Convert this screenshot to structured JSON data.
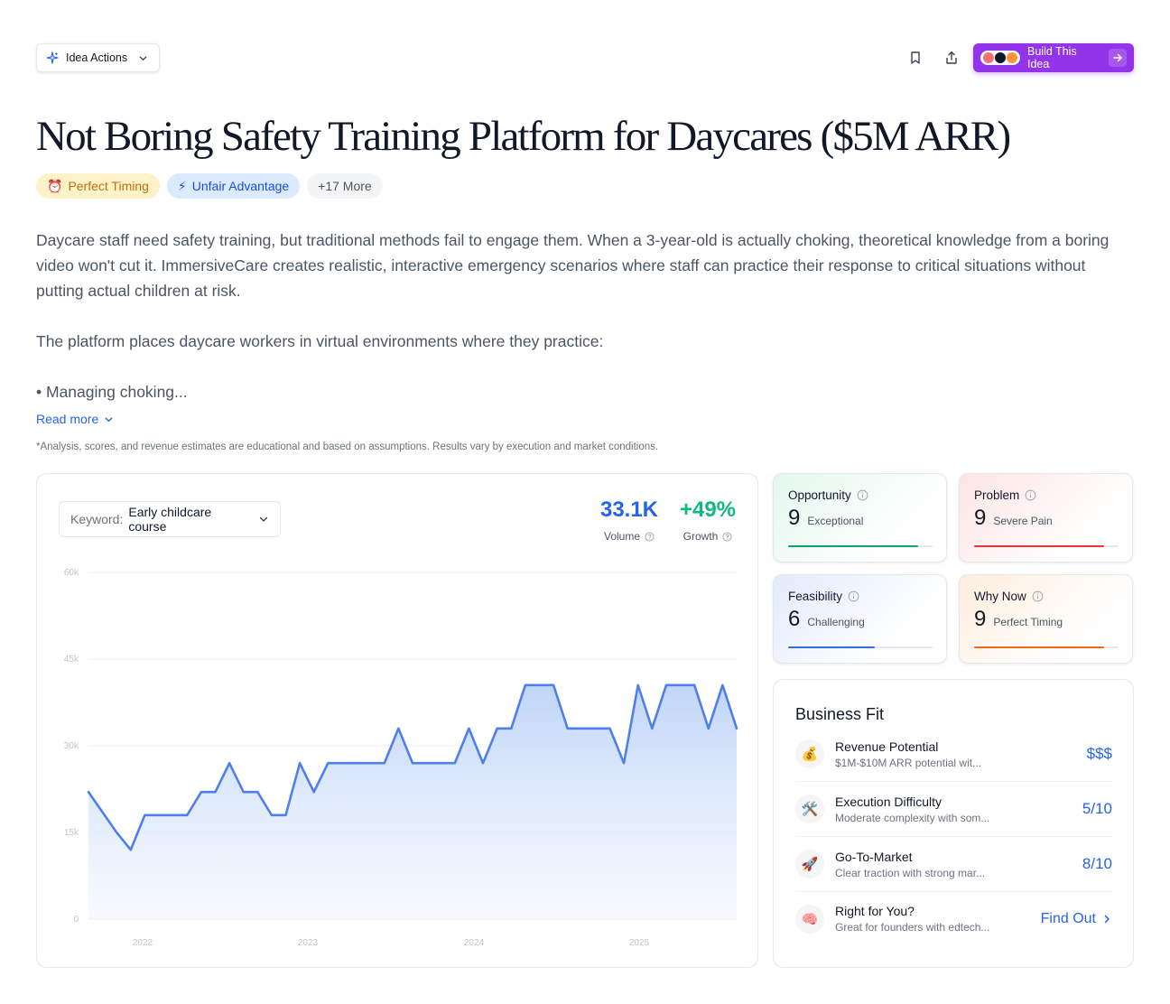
{
  "header": {
    "idea_actions_label": "Idea Actions",
    "build_label": "Build This Idea"
  },
  "title": "Not Boring Safety Training Platform for Daycares ($5M ARR)",
  "tags": [
    {
      "icon": "⏰",
      "label": "Perfect Timing"
    },
    {
      "icon": "⚡",
      "label": "Unfair Advantage"
    },
    {
      "label": "+17 More"
    }
  ],
  "description": {
    "p1": "Daycare staff need safety training, but traditional methods fail to engage them. When a 3-year-old is actually choking, theoretical knowledge from a boring video won't cut it. ImmersiveCare creates realistic, interactive emergency scenarios where staff can practice their response to critical situations without putting actual children at risk.",
    "p2": "The platform places daycare workers in virtual environments where they practice:",
    "p3": "• Managing choking...",
    "read_more": "Read more"
  },
  "disclaimer": "*Analysis, scores, and revenue estimates are educational and based on assumptions. Results vary by execution and market conditions.",
  "keyword": {
    "label": "Keyword:",
    "value": "Early childcare course"
  },
  "metrics": {
    "volume": {
      "value": "33.1K",
      "label": "Volume"
    },
    "growth": {
      "value": "+49%",
      "label": "Growth"
    }
  },
  "chart_data": {
    "type": "area",
    "y_ticks": [
      "0",
      "15k",
      "30k",
      "45k",
      "60k"
    ],
    "x_ticks": [
      "2022",
      "2023",
      "2024",
      "2025"
    ],
    "ylim": [
      0,
      60000
    ],
    "color": "#4f7fe8",
    "values": [
      22000,
      18500,
      15000,
      12000,
      18000,
      18000,
      18000,
      18000,
      22000,
      22000,
      27000,
      22000,
      22000,
      18000,
      18000,
      27000,
      22000,
      27000,
      27000,
      27000,
      27000,
      27000,
      33000,
      27000,
      27000,
      27000,
      27000,
      33000,
      27000,
      33000,
      33000,
      40500,
      40500,
      40500,
      33000,
      33000,
      33000,
      33000,
      27000,
      40500,
      33000,
      40500,
      40500,
      40500,
      33000,
      40500,
      33000
    ]
  },
  "scores": [
    {
      "key": "opportunity",
      "label": "Opportunity",
      "score": "9",
      "desc": "Exceptional",
      "value": 9,
      "color": "#10a36b"
    },
    {
      "key": "problem",
      "label": "Problem",
      "score": "9",
      "desc": "Severe Pain",
      "value": 9,
      "color": "#e5343a"
    },
    {
      "key": "feasibility",
      "label": "Feasibility",
      "score": "6",
      "desc": "Challenging",
      "value": 6,
      "color": "#2f6fe0"
    },
    {
      "key": "whynow",
      "label": "Why Now",
      "score": "9",
      "desc": "Perfect Timing",
      "value": 9,
      "color": "#f0681a"
    }
  ],
  "business_fit": {
    "title": "Business Fit",
    "rows": [
      {
        "icon": "💰",
        "name": "Revenue Potential",
        "sub": "$1M-$10M ARR potential wit...",
        "value": "$$$"
      },
      {
        "icon": "🛠️",
        "name": "Execution Difficulty",
        "sub": "Moderate complexity with som...",
        "value": "5/10"
      },
      {
        "icon": "🚀",
        "name": "Go-To-Market",
        "sub": "Clear traction with strong mar...",
        "value": "8/10"
      },
      {
        "icon": "🧠",
        "name": "Right for You?",
        "sub": "Great for founders with edtech...",
        "value": "Find Out"
      }
    ]
  }
}
